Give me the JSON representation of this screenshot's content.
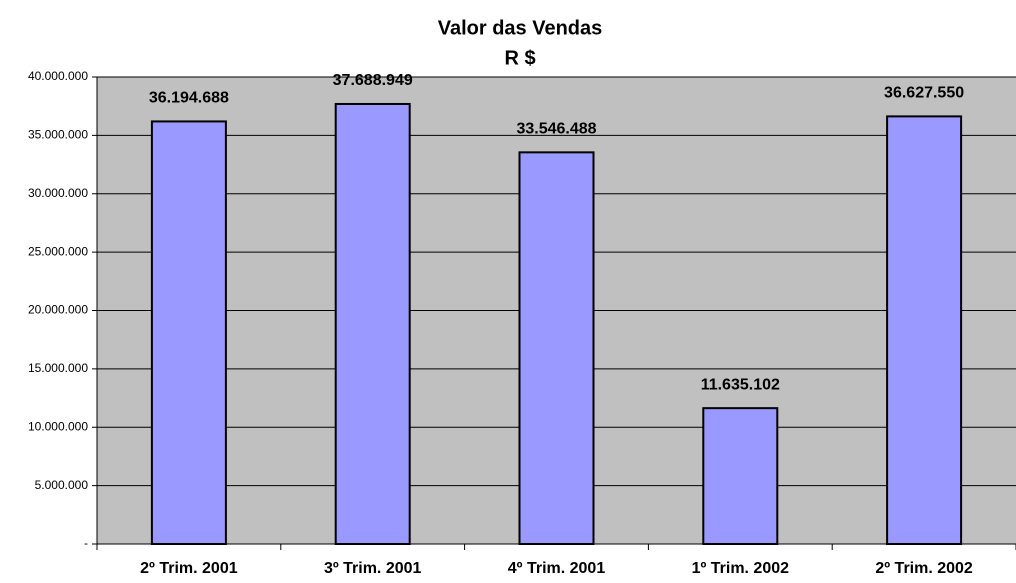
{
  "chart_data": {
    "type": "bar",
    "title": "Valor das Vendas",
    "subtitle": "R $",
    "categories": [
      "2º Trim. 2001",
      "3º Trim. 2001",
      "4º Trim. 2001",
      "1º Trim. 2002",
      "2º Trim. 2002"
    ],
    "values": [
      36194688,
      37688949,
      33546488,
      11635102,
      36627550
    ],
    "value_labels": [
      "36.194.688",
      "37.688.949",
      "33.546.488",
      "11.635.102",
      "36.627.550"
    ],
    "color": "#9999ff",
    "ylim": [
      0,
      40000000
    ],
    "yticks": [
      {
        "value": 0,
        "label": "-"
      },
      {
        "value": 5000000,
        "label": "5.000.000"
      },
      {
        "value": 10000000,
        "label": "10.000.000"
      },
      {
        "value": 15000000,
        "label": "15.000.000"
      },
      {
        "value": 20000000,
        "label": "20.000.000"
      },
      {
        "value": 25000000,
        "label": "25.000.000"
      },
      {
        "value": 30000000,
        "label": "30.000.000"
      },
      {
        "value": 35000000,
        "label": "35.000.000"
      },
      {
        "value": 40000000,
        "label": "40.000.000"
      }
    ],
    "grid": true
  }
}
